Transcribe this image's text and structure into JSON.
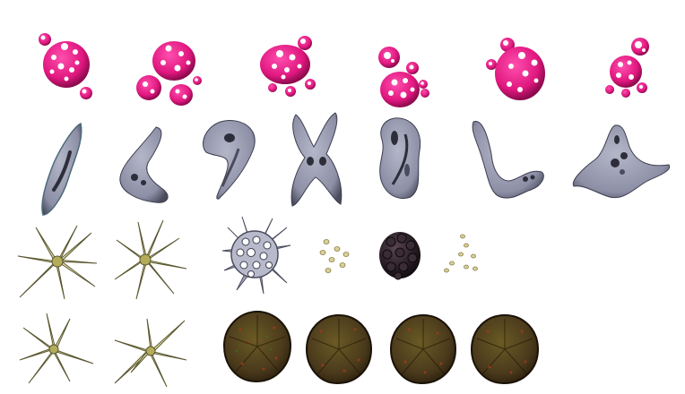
{
  "sheet": {
    "background": "#ffffff",
    "rows": [
      {
        "name": "pink-spotted-spores",
        "colors": {
          "fill": "#e0177f",
          "dark": "#8a0a4c",
          "spot": "#ffffff"
        },
        "count": 6
      },
      {
        "name": "grey-amoeba-cells",
        "colors": {
          "fill": "#8d8fa6",
          "dark": "#3c3d4e",
          "light": "#c4c6d4"
        },
        "count": 7
      },
      {
        "name": "star-pollen-and-debris",
        "colors": {
          "star": "#e3e0ad",
          "star_dark": "#6e6b3a",
          "seed": "#bdb07a",
          "grey": "#a4a6b8",
          "black": "#1b1418"
        },
        "count": 6
      },
      {
        "name": "star-pollen-and-brown-discs",
        "colors": {
          "star": "#e3e0ad",
          "disc": "#4a3a1c",
          "disc_rim": "#2a1e0c",
          "disc_speck": "#a33a1a"
        },
        "count": 6
      }
    ]
  }
}
